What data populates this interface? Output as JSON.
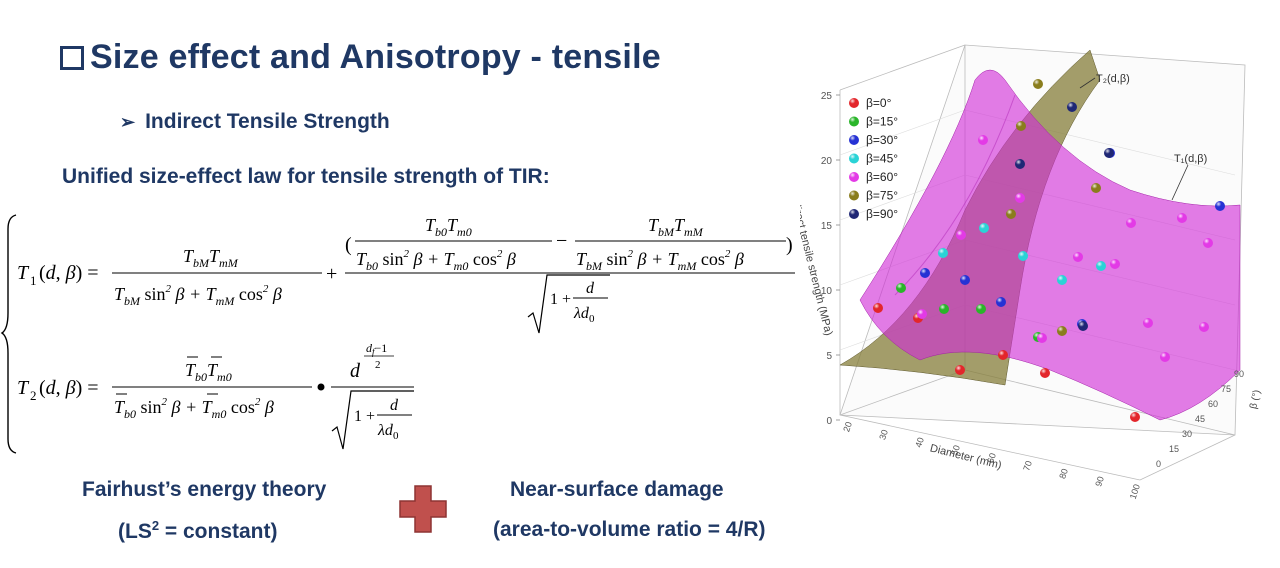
{
  "slide": {
    "title": "Size effect and Anisotropy - tensile",
    "bullet": "Indirect Tensile Strength",
    "subtitle": "Unified size-effect law for tensile strength of TIR:"
  },
  "footer": {
    "left_line1": "Fairhust’s energy theory",
    "left_line2_pre": "(LS",
    "left_line2_sup": "2",
    "left_line2_post": " = constant)",
    "right_line1": "Near-surface damage",
    "right_line2": "(area-to-volume ratio = 4/R)",
    "plus_color": "#c0504d"
  },
  "colors": {
    "title": "#1f3864"
  },
  "chart_data": {
    "type": "scatter",
    "title": "",
    "xlabel": "Diameter (mm)",
    "ylabel": "Indirect tensile strength (MPa)",
    "zlabel": "β (°)",
    "xlim": [
      10,
      100
    ],
    "ylim": [
      0,
      25
    ],
    "zlim": [
      0,
      90
    ],
    "x_ticks": [
      "20",
      "30",
      "40",
      "50",
      "60",
      "70",
      "80",
      "90",
      "100"
    ],
    "y_ticks": [
      "0",
      "5",
      "10",
      "15",
      "20",
      "25"
    ],
    "z_ticks": [
      "0",
      "15",
      "30",
      "45",
      "60",
      "75",
      "90"
    ],
    "surface_labels": [
      "T₂(d,β)",
      "T₁(d,β)"
    ],
    "legend_position": "top-left",
    "series": [
      {
        "name": "β=0°",
        "color": "#e3262b"
      },
      {
        "name": "β=15°",
        "color": "#2ab52a"
      },
      {
        "name": "β=30°",
        "color": "#2632d4"
      },
      {
        "name": "β=45°",
        "color": "#2ad3d6"
      },
      {
        "name": "β=60°",
        "color": "#e33ae6"
      },
      {
        "name": "β=75°",
        "color": "#8a7d1d"
      },
      {
        "name": "β=90°",
        "color": "#1f2775"
      }
    ]
  }
}
